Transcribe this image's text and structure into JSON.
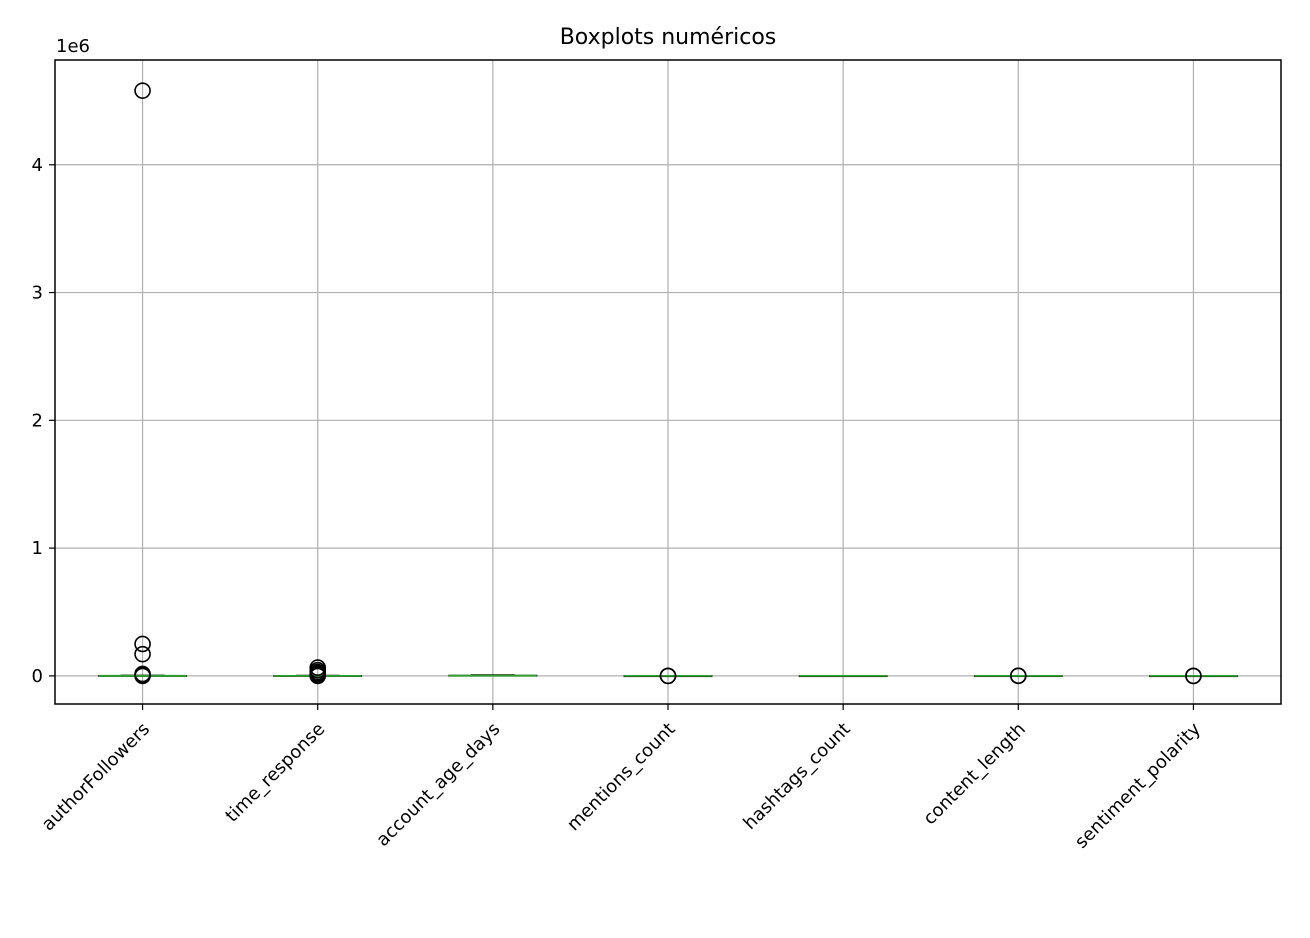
{
  "chart_data": {
    "type": "boxplot",
    "title": "Boxplots numéricos",
    "xlabel": "",
    "ylabel": "",
    "y_offset_label": "1e6",
    "ylim": [
      -220000,
      4820000
    ],
    "yticks": [
      0,
      1000000,
      2000000,
      3000000,
      4000000
    ],
    "ytick_labels": [
      "0",
      "1",
      "2",
      "3",
      "4"
    ],
    "grid": true,
    "categories": [
      "authorFollowers",
      "time_response",
      "account_age_days",
      "mentions_count",
      "hashtags_count",
      "content_length",
      "sentiment_polarity"
    ],
    "series": [
      {
        "category": "authorFollowers",
        "q1": 0,
        "median": 500,
        "q3": 2000,
        "whisker_low": 0,
        "whisker_high": 5000,
        "outliers": [
          4580000,
          250000,
          170000,
          15000,
          8000,
          0
        ]
      },
      {
        "category": "time_response",
        "q1": 0,
        "median": 300,
        "q3": 1500,
        "whisker_low": 0,
        "whisker_high": 4000,
        "outliers": [
          65000,
          45000,
          30000,
          20000,
          10000,
          0
        ]
      },
      {
        "category": "account_age_days",
        "q1": 0,
        "median": 1500,
        "q3": 4000,
        "whisker_low": 0,
        "whisker_high": 8000,
        "outliers": []
      },
      {
        "category": "mentions_count",
        "q1": 0,
        "median": 1,
        "q3": 2,
        "whisker_low": 0,
        "whisker_high": 5,
        "outliers": [
          10,
          5
        ]
      },
      {
        "category": "hashtags_count",
        "q1": 0,
        "median": 0,
        "q3": 1,
        "whisker_low": 0,
        "whisker_high": 2,
        "outliers": []
      },
      {
        "category": "content_length",
        "q1": 50,
        "median": 100,
        "q3": 200,
        "whisker_low": 0,
        "whisker_high": 400,
        "outliers": [
          900,
          600
        ]
      },
      {
        "category": "sentiment_polarity",
        "q1": -0.2,
        "median": 0,
        "q3": 0.3,
        "whisker_low": -1,
        "whisker_high": 1,
        "outliers": [
          1,
          -1
        ]
      }
    ],
    "colors": {
      "median": "#2ca02c",
      "box": "#000000",
      "grid": "#b0b0b0"
    }
  }
}
